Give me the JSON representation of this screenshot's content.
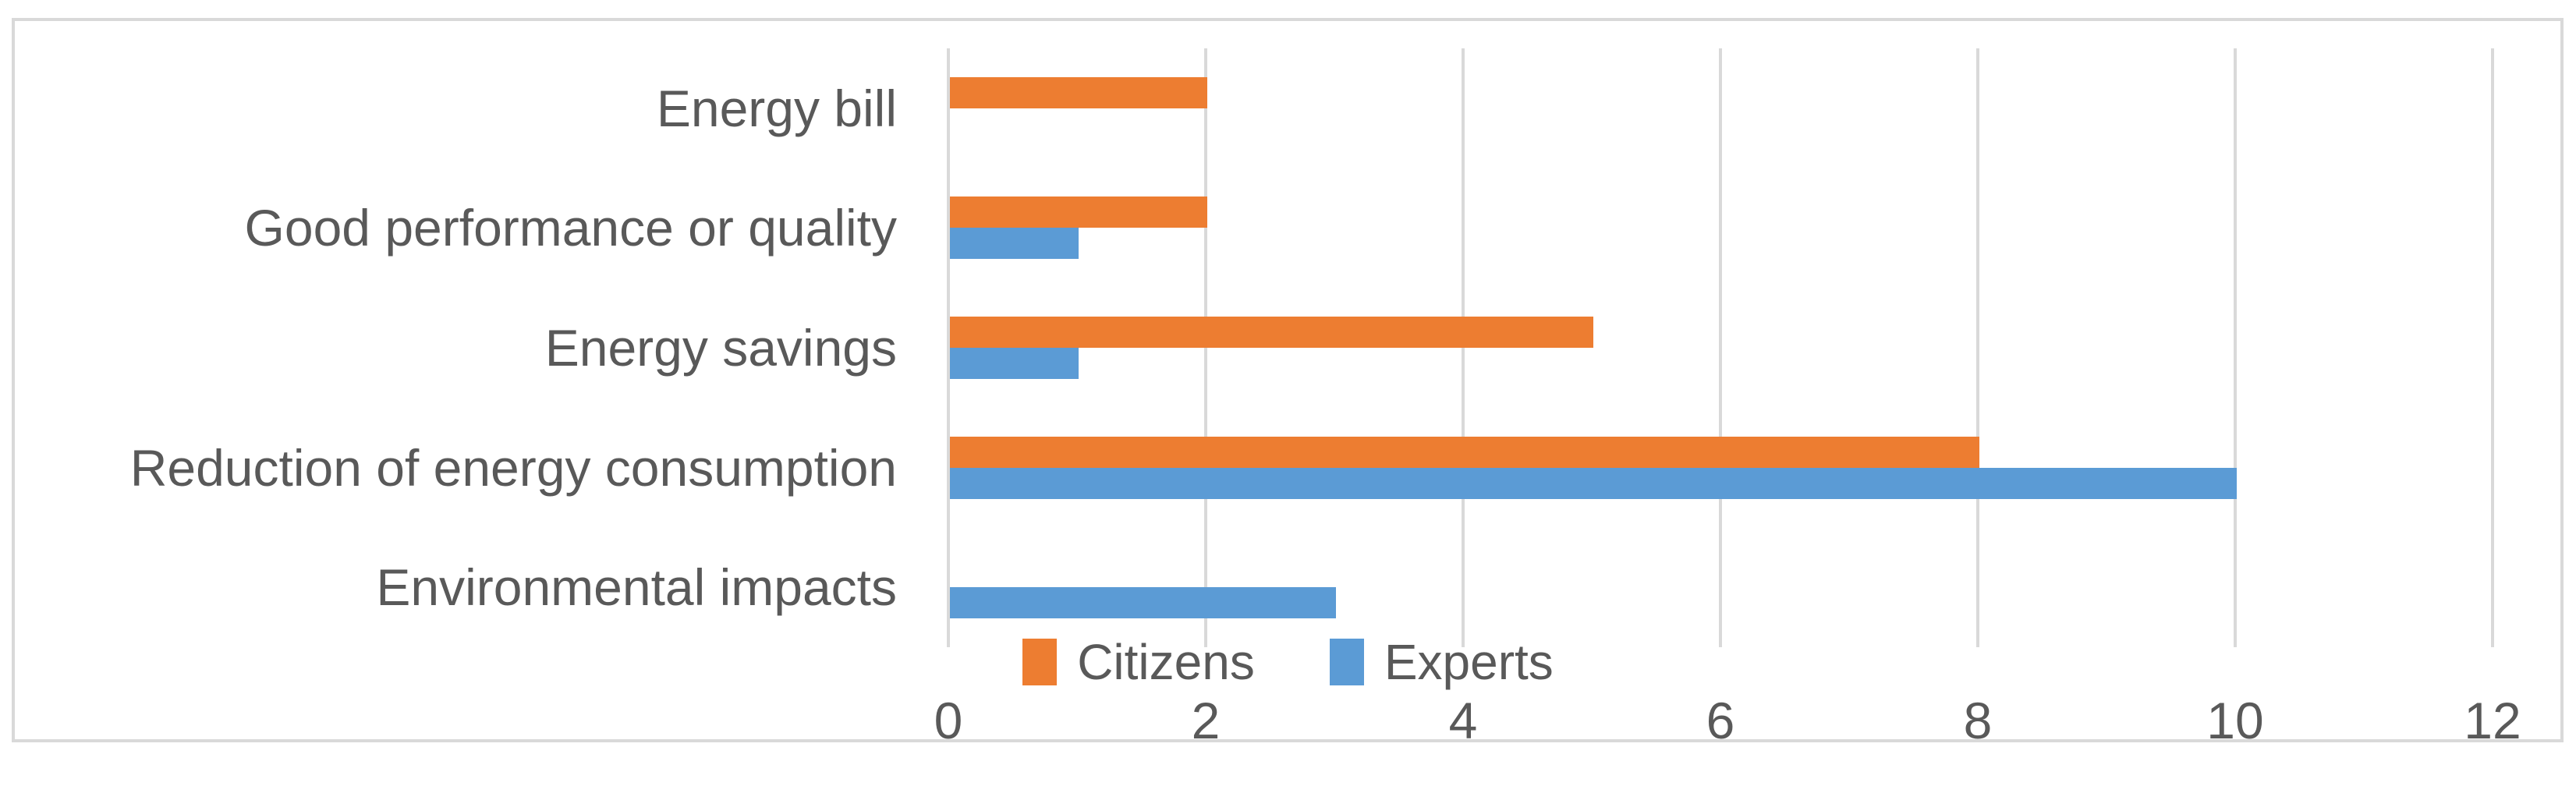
{
  "chart_data": {
    "type": "bar",
    "orientation": "horizontal",
    "title": "",
    "xlabel": "",
    "ylabel": "",
    "categories": [
      "Energy bill",
      "Good performance or quality",
      "Energy savings",
      "Reduction of energy consumption",
      "Environmental impacts"
    ],
    "series": [
      {
        "name": "Citizens",
        "color": "#ED7D31",
        "values": [
          2,
          2,
          5,
          8,
          0
        ]
      },
      {
        "name": "Experts",
        "color": "#5B9BD5",
        "values": [
          0,
          1,
          1,
          10,
          3
        ]
      }
    ],
    "xlim": [
      0,
      12
    ],
    "x_ticks": [
      0,
      2,
      4,
      6,
      8,
      10,
      12
    ],
    "grid": "vertical-gridlines",
    "legend_position": "bottom-center-above-tick-labels"
  },
  "style_colors": {
    "grid_and_border": "#D9D9D9",
    "axis_text": "#595959",
    "background": "#FFFFFF"
  }
}
